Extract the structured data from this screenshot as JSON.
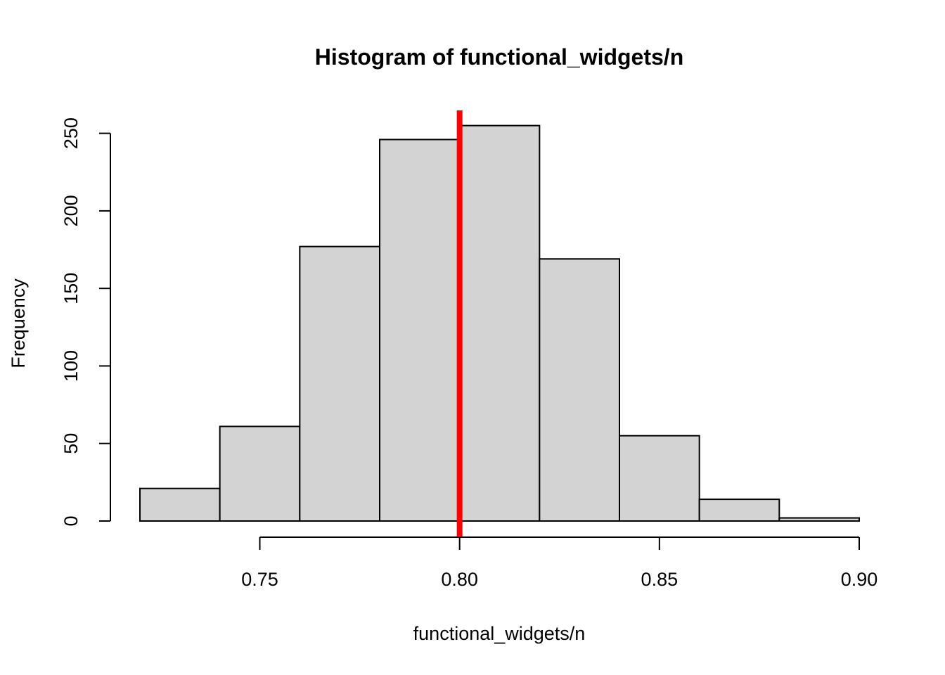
{
  "chart_data": {
    "type": "bar",
    "title": "Histogram of functional_widgets/n",
    "xlabel": "functional_widgets/n",
    "ylabel": "Frequency",
    "bins": [
      {
        "start": 0.72,
        "end": 0.74,
        "count": 21
      },
      {
        "start": 0.74,
        "end": 0.76,
        "count": 61
      },
      {
        "start": 0.76,
        "end": 0.78,
        "count": 177
      },
      {
        "start": 0.78,
        "end": 0.8,
        "count": 246
      },
      {
        "start": 0.8,
        "end": 0.82,
        "count": 255
      },
      {
        "start": 0.82,
        "end": 0.84,
        "count": 169
      },
      {
        "start": 0.84,
        "end": 0.86,
        "count": 55
      },
      {
        "start": 0.86,
        "end": 0.88,
        "count": 14
      },
      {
        "start": 0.88,
        "end": 0.9,
        "count": 2
      }
    ],
    "xlim": [
      0.72,
      0.9
    ],
    "ylim": [
      0,
      265
    ],
    "x_ticks": [
      {
        "value": 0.75,
        "label": "0.75"
      },
      {
        "value": 0.8,
        "label": "0.80"
      },
      {
        "value": 0.85,
        "label": "0.85"
      },
      {
        "value": 0.9,
        "label": "0.90"
      }
    ],
    "y_ticks": [
      {
        "value": 0,
        "label": "0"
      },
      {
        "value": 50,
        "label": "50"
      },
      {
        "value": 100,
        "label": "100"
      },
      {
        "value": 150,
        "label": "150"
      },
      {
        "value": 200,
        "label": "200"
      },
      {
        "value": 250,
        "label": "250"
      }
    ],
    "reference_line": {
      "x": 0.8,
      "color": "#ff0000"
    },
    "bar_fill": "#d3d3d3",
    "grid": false
  }
}
